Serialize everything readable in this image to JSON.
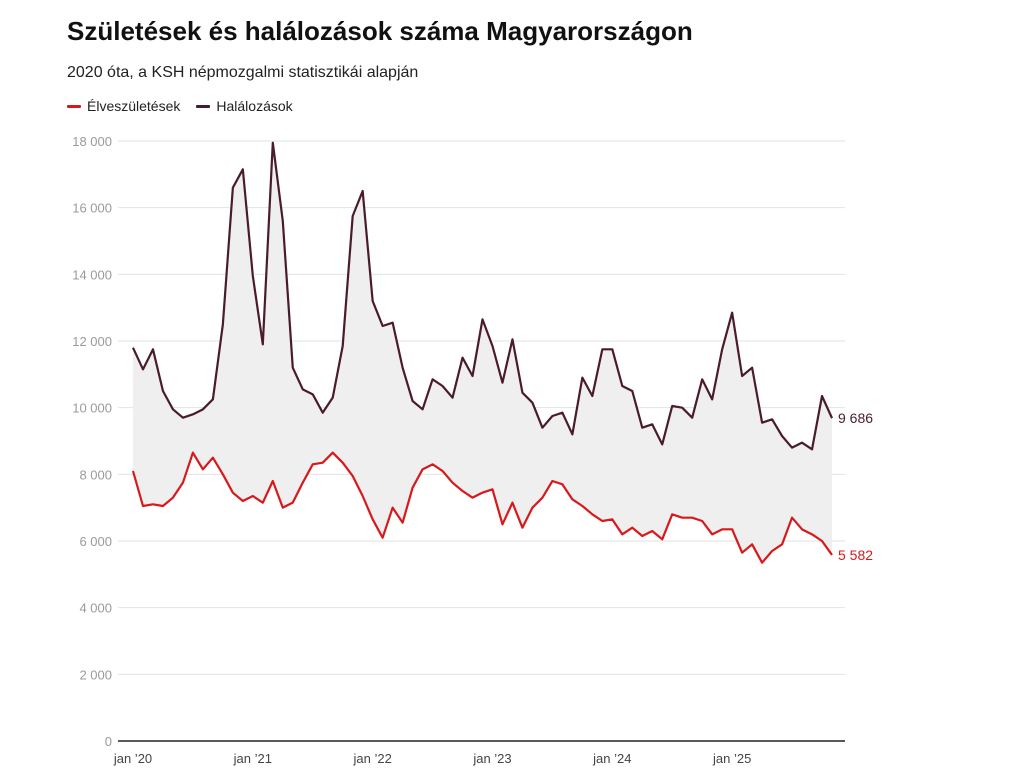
{
  "chart_data": {
    "type": "line",
    "title": "Születések és halálozások száma Magyarországon",
    "subtitle": "2020 óta, a KSH népmozgalmi statisztikái alapján",
    "ylim": [
      0,
      18000
    ],
    "yticks": [
      0,
      2000,
      4000,
      6000,
      8000,
      10000,
      12000,
      14000,
      16000,
      18000
    ],
    "ytick_labels": [
      "0",
      "2 000",
      "4 000",
      "6 000",
      "8 000",
      "10 000",
      "12 000",
      "14 000",
      "16 000",
      "18 000"
    ],
    "xtick_labels": [
      "jan ’20",
      "jan ’21",
      "jan ’22",
      "jan ’23",
      "jan ’24",
      "jan ’25"
    ],
    "xtick_index": [
      0,
      12,
      24,
      36,
      48,
      60
    ],
    "series": [
      {
        "name": "Élveszületések",
        "color": "#d7191c",
        "end_label": "5 582",
        "values": [
          8100,
          7050,
          7100,
          7050,
          7300,
          7750,
          8650,
          8150,
          8500,
          8000,
          7450,
          7200,
          7350,
          7150,
          7800,
          7000,
          7150,
          7750,
          8300,
          8350,
          8650,
          8350,
          7950,
          7350,
          6650,
          6100,
          7000,
          6550,
          7600,
          8150,
          8300,
          8100,
          7750,
          7500,
          7300,
          7450,
          7550,
          6500,
          7150,
          6400,
          7000,
          7300,
          7800,
          7700,
          7250,
          7050,
          6800,
          6600,
          6650,
          6200,
          6400,
          6150,
          6300,
          6050,
          6800,
          6700,
          6700,
          6600,
          6200,
          6350,
          6350,
          5650,
          5900,
          5350,
          5700,
          5900,
          6700,
          6350,
          6200,
          6000,
          5582
        ]
      },
      {
        "name": "Halálozások",
        "color": "#4a1c2a",
        "end_label": "9 686",
        "values": [
          11800,
          11150,
          11750,
          10500,
          9950,
          9700,
          9800,
          9950,
          10250,
          12500,
          16600,
          17150,
          13950,
          11900,
          17950,
          15600,
          11200,
          10550,
          10400,
          9850,
          10300,
          11850,
          15750,
          16500,
          13200,
          12450,
          12550,
          11200,
          10200,
          9950,
          10850,
          10650,
          10300,
          11500,
          10950,
          12650,
          11850,
          10750,
          12050,
          10450,
          10150,
          9400,
          9750,
          9850,
          9200,
          10900,
          10350,
          11750,
          11750,
          10650,
          10500,
          9400,
          9500,
          8900,
          10050,
          10000,
          9700,
          10850,
          10250,
          11750,
          12850,
          10950,
          11200,
          9550,
          9650,
          9150,
          8800,
          8950,
          8750,
          10350,
          9686
        ]
      }
    ]
  }
}
